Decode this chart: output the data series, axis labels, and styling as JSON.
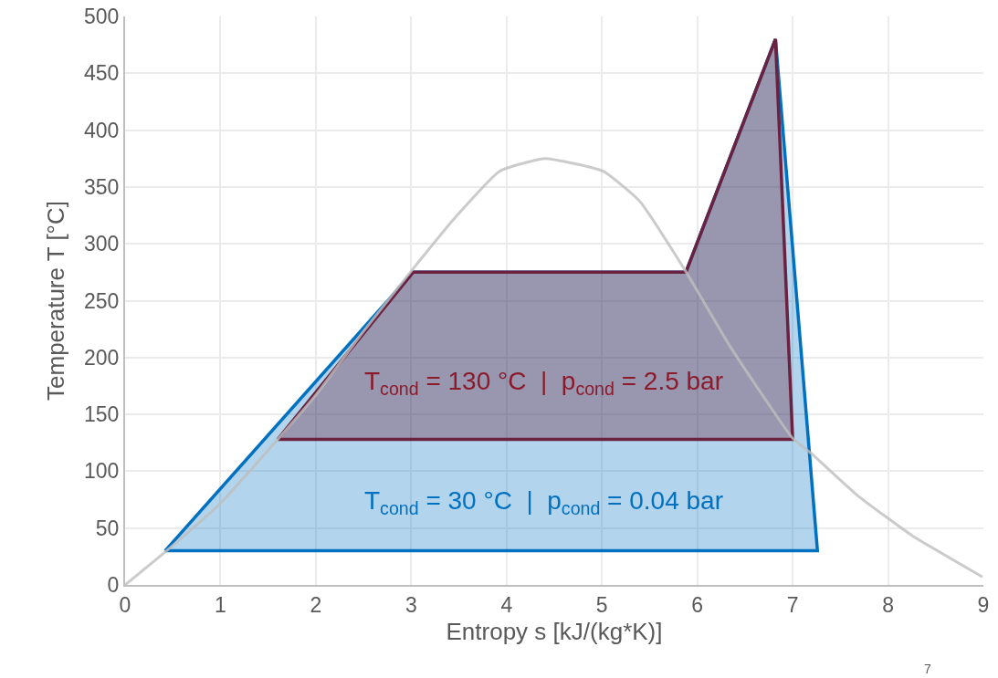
{
  "chart_data": {
    "type": "line",
    "xlabel": "Entropy s [kJ/(kg*K)]",
    "ylabel": "Temperature T [°C]",
    "xlim": [
      0,
      9
    ],
    "xticks": [
      0,
      1,
      2,
      3,
      4,
      5,
      6,
      7,
      8,
      9
    ],
    "ylim": [
      0,
      500
    ],
    "yticks": [
      0,
      50,
      100,
      150,
      200,
      250,
      300,
      350,
      400,
      450,
      500
    ],
    "grid": true,
    "marker": "none",
    "line_style": "solid",
    "series": [
      {
        "color": "#bfbfbf",
        "x": [
          0,
          0.42,
          0.99,
          1.59,
          2.0,
          2.5,
          3.0,
          3.45,
          3.93,
          4.4,
          5.01,
          5.39,
          5.87,
          6.35,
          7.0,
          7.19,
          7.69,
          8.26,
          8.99
        ],
        "values": [
          0,
          29,
          71,
          127,
          167,
          223,
          276,
          322,
          364,
          375,
          364,
          338,
          277,
          209,
          129,
          116,
          78,
          43,
          7
        ]
      },
      {
        "type": "area",
        "color": "#0070c0",
        "x": [
          0.42,
          3.02,
          5.88,
          6.82,
          7.26,
          0.42
        ],
        "values": [
          30,
          275,
          275,
          480,
          30,
          30
        ]
      },
      {
        "type": "area",
        "color": "#6b2240",
        "x": [
          1.6,
          3.02,
          5.88,
          6.82,
          7.0,
          1.6
        ],
        "values": [
          128,
          275,
          275,
          480,
          128,
          128
        ]
      }
    ],
    "annotations": [
      "T$_{cond}$ = 30 °C  |  p$_{cond}$ = 0.04 bar",
      "T$_{cond}$ = 130 °C  |  p$_{cond}$ = 2.5 bar",
      "7"
    ]
  }
}
